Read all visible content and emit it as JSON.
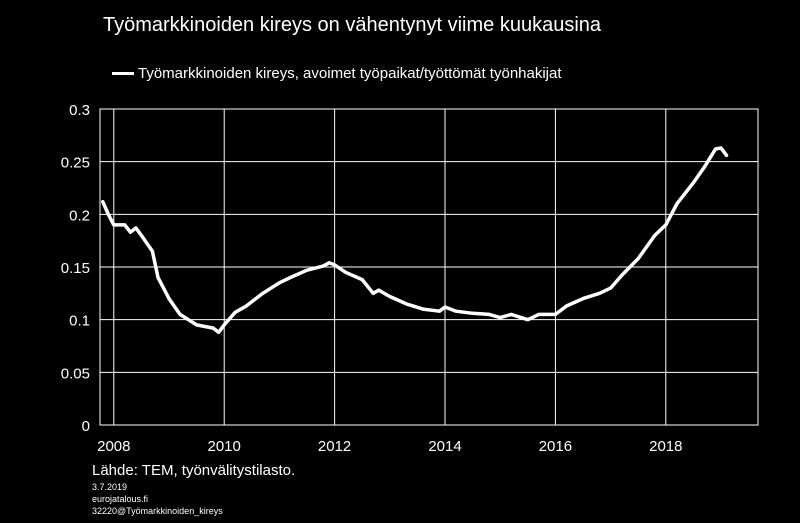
{
  "chart_data": {
    "type": "line",
    "title": "Työmarkkinoiden kireys on vähentynyt  viime kuukausina",
    "xlabel": "",
    "ylabel": "",
    "xlim": [
      2007.75,
      2019.67
    ],
    "ylim": [
      0,
      0.3
    ],
    "x_ticks": [
      2008,
      2010,
      2012,
      2014,
      2016,
      2018
    ],
    "x_tick_labels": [
      "2008",
      "2010",
      "2012",
      "2014",
      "2016",
      "2018"
    ],
    "y_ticks": [
      0,
      0.05,
      0.1,
      0.15,
      0.2,
      0.25,
      0.3
    ],
    "y_tick_labels": [
      "0",
      "0.05",
      "0.1",
      "0.15",
      "0.2",
      "0.25",
      "0.3"
    ],
    "grid": true,
    "legend_position": "top",
    "line_color": "#ffffff",
    "series": [
      {
        "name": "Työmarkkinoiden kireys, avoimet työpaikat/työttömät työnhakijat",
        "x": [
          2007.8,
          2007.9,
          2008.0,
          2008.2,
          2008.3,
          2008.4,
          2008.5,
          2008.7,
          2008.8,
          2009.0,
          2009.2,
          2009.5,
          2009.8,
          2009.9,
          2010.0,
          2010.2,
          2010.4,
          2010.7,
          2011.0,
          2011.2,
          2011.5,
          2011.8,
          2011.9,
          2012.0,
          2012.2,
          2012.5,
          2012.7,
          2012.8,
          2013.0,
          2013.3,
          2013.6,
          2013.9,
          2014.0,
          2014.2,
          2014.5,
          2014.8,
          2015.0,
          2015.2,
          2015.5,
          2015.7,
          2016.0,
          2016.2,
          2016.5,
          2016.8,
          2017.0,
          2017.2,
          2017.5,
          2017.8,
          2018.0,
          2018.2,
          2018.5,
          2018.7,
          2018.9,
          2019.0,
          2019.1
        ],
        "y": [
          0.212,
          0.2,
          0.19,
          0.19,
          0.183,
          0.187,
          0.18,
          0.165,
          0.14,
          0.12,
          0.105,
          0.095,
          0.092,
          0.088,
          0.095,
          0.107,
          0.113,
          0.125,
          0.135,
          0.14,
          0.147,
          0.151,
          0.154,
          0.152,
          0.145,
          0.138,
          0.125,
          0.128,
          0.122,
          0.115,
          0.11,
          0.108,
          0.112,
          0.108,
          0.106,
          0.105,
          0.102,
          0.105,
          0.1,
          0.105,
          0.105,
          0.113,
          0.12,
          0.125,
          0.13,
          0.142,
          0.158,
          0.18,
          0.19,
          0.21,
          0.23,
          0.245,
          0.262,
          0.263,
          0.256
        ]
      }
    ]
  },
  "source": "Lähde: TEM, työnvälitystilasto.",
  "meta": {
    "date": "3.7.2019",
    "site": "eurojatalous.fi",
    "code": "32220@Työmarkkinoiden_kireys"
  }
}
